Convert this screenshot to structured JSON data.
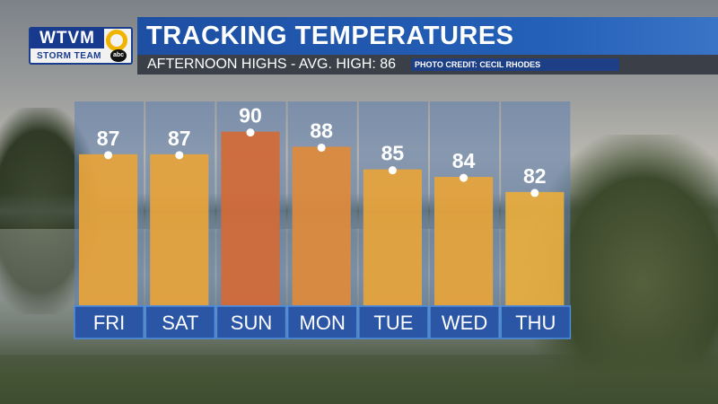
{
  "header": {
    "logo_text": "WTVM",
    "logo_sub": "STORM TEAM",
    "logo_network": "abc",
    "title": "TRACKING TEMPERATURES",
    "subtitle": "AFTERNOON HIGHS - AVG. HIGH: 86",
    "photo_credit": "PHOTO CREDIT: CECIL RHODES"
  },
  "colors": {
    "title_bar": "#2460b8",
    "sub_bar": "#3a3f48",
    "column_bg": "#5f7fb0",
    "bar_default": "#e8a43a",
    "bar_hot": "#d46a36",
    "day_box": "#2b55a5"
  },
  "chart_data": {
    "type": "bar",
    "categories": [
      "FRI",
      "SAT",
      "SUN",
      "MON",
      "TUE",
      "WED",
      "THU"
    ],
    "values": [
      87,
      87,
      90,
      88,
      85,
      84,
      82
    ],
    "value_labels": [
      "87",
      "87",
      "90",
      "88",
      "85",
      "84",
      "82"
    ],
    "bar_colors": [
      "#e8a43a",
      "#e8a43a",
      "#d46a36",
      "#e08a3a",
      "#e8a43a",
      "#e8a43a",
      "#e9ad3c"
    ],
    "title": "",
    "xlabel": "",
    "ylabel": "",
    "ylim": [
      67,
      94
    ],
    "grid": false,
    "legend": "none"
  }
}
